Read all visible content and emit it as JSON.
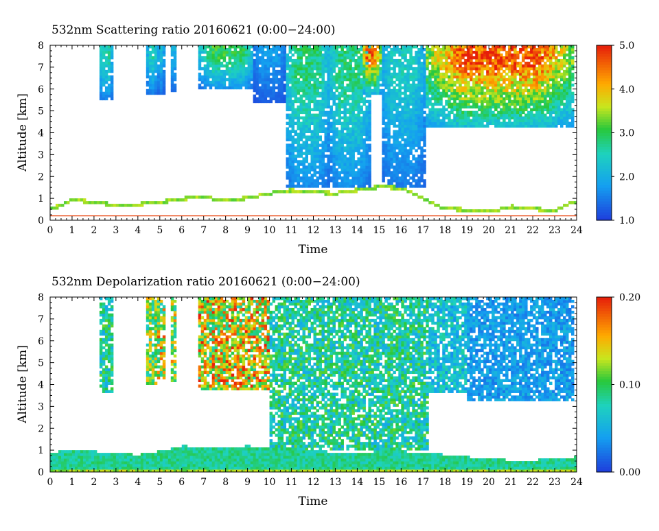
{
  "chart_data": [
    {
      "type": "heatmap",
      "title": "532nm Scattering ratio  20160621 (0:00−24:00)",
      "xlabel": "Time",
      "ylabel": "Altitude [km]",
      "xlim": [
        0,
        24
      ],
      "ylim": [
        0,
        8
      ],
      "x_ticks": [
        "0",
        "1",
        "2",
        "3",
        "4",
        "5",
        "6",
        "7",
        "8",
        "9",
        "10",
        "11",
        "12",
        "13",
        "14",
        "15",
        "16",
        "17",
        "18",
        "19",
        "20",
        "21",
        "22",
        "23",
        "24"
      ],
      "y_ticks": [
        "0",
        "1",
        "2",
        "3",
        "4",
        "5",
        "6",
        "7",
        "8"
      ],
      "colorbar": {
        "min": 1.0,
        "max": 5.0,
        "tick_labels": [
          "1.0",
          "2.0",
          "3.0",
          "4.0",
          "5.0"
        ],
        "tick_values": [
          1.0,
          2.0,
          3.0,
          4.0,
          5.0
        ]
      },
      "features": {
        "boundary_layer_top_km": [
          [
            0,
            0.6
          ],
          [
            0.5,
            0.75
          ],
          [
            1,
            1.0
          ],
          [
            2,
            0.9
          ],
          [
            3,
            0.75
          ],
          [
            4,
            0.8
          ],
          [
            5,
            0.9
          ],
          [
            6,
            1.05
          ],
          [
            7,
            1.15
          ],
          [
            8,
            0.95
          ],
          [
            9,
            1.1
          ],
          [
            10,
            1.3
          ],
          [
            11,
            1.45
          ],
          [
            12,
            1.35
          ],
          [
            13,
            1.3
          ],
          [
            14,
            1.45
          ],
          [
            15,
            1.6
          ],
          [
            16,
            1.55
          ],
          [
            17,
            1.05
          ],
          [
            18,
            0.6
          ],
          [
            19,
            0.55
          ],
          [
            20,
            0.45
          ],
          [
            21,
            0.7
          ],
          [
            22,
            0.6
          ],
          [
            23,
            0.5
          ],
          [
            23.8,
            0.9
          ]
        ],
        "surface_line_km": 0.2,
        "cloud_columns": [
          {
            "x0": 2.2,
            "x1": 2.85,
            "y0": 5.5,
            "y1": 8.0,
            "peak": 2.6
          },
          {
            "x0": 4.4,
            "x1": 4.9,
            "y0": 5.8,
            "y1": 8.0,
            "peak": 2.5
          },
          {
            "x0": 4.9,
            "x1": 5.2,
            "y0": 5.8,
            "y1": 8.0,
            "peak": 2.2
          },
          {
            "x0": 5.5,
            "x1": 5.75,
            "y0": 5.9,
            "y1": 8.0,
            "peak": 2.0
          },
          {
            "x0": 6.8,
            "x1": 9.3,
            "y0": 6.0,
            "y1": 8.0,
            "peak": 3.0
          },
          {
            "x0": 9.3,
            "x1": 10.7,
            "y0": 5.4,
            "y1": 8.0,
            "peak": 1.8
          },
          {
            "x0": 10.7,
            "x1": 12.7,
            "y0": 1.5,
            "y1": 8.0,
            "peak": 2.8
          },
          {
            "x0": 12.7,
            "x1": 14.6,
            "y0": 1.5,
            "y1": 8.0,
            "peak": 2.8
          },
          {
            "x0": 14.2,
            "x1": 15.1,
            "y0": 5.8,
            "y1": 8.0,
            "peak": 4.4
          },
          {
            "x0": 15.1,
            "x1": 17.1,
            "y0": 1.5,
            "y1": 8.0,
            "peak": 2.4
          },
          {
            "x0": 17.1,
            "x1": 23.9,
            "y0": 4.3,
            "y1": 8.0,
            "peak": 4.6
          }
        ]
      }
    },
    {
      "type": "heatmap",
      "title": "532nm Depolarization ratio  20160621 (0:00−24:00)",
      "xlabel": "Time",
      "ylabel": "Altitude [km]",
      "xlim": [
        0,
        24
      ],
      "ylim": [
        0,
        8
      ],
      "x_ticks": [
        "0",
        "1",
        "2",
        "3",
        "4",
        "5",
        "6",
        "7",
        "8",
        "9",
        "10",
        "11",
        "12",
        "13",
        "14",
        "15",
        "16",
        "17",
        "18",
        "19",
        "20",
        "21",
        "22",
        "23",
        "24"
      ],
      "y_ticks": [
        "0",
        "1",
        "2",
        "3",
        "4",
        "5",
        "6",
        "7",
        "8"
      ],
      "colorbar": {
        "min": 0.0,
        "max": 0.2,
        "tick_labels": [
          "0.00",
          "0.10",
          "0.20"
        ],
        "tick_values": [
          0.0,
          0.1,
          0.2
        ]
      },
      "features": {
        "boundary_layer_top_km": [
          [
            0,
            0.9
          ],
          [
            1,
            1.0
          ],
          [
            2,
            0.95
          ],
          [
            2.5,
            0.9
          ],
          [
            3,
            0.85
          ],
          [
            4,
            0.8
          ],
          [
            5,
            0.95
          ],
          [
            6,
            1.2
          ],
          [
            7,
            1.15
          ],
          [
            8,
            1.1
          ],
          [
            9,
            1.2
          ],
          [
            10,
            1.1
          ],
          [
            11,
            1.1
          ],
          [
            12,
            1.0
          ],
          [
            13,
            0.9
          ],
          [
            14,
            0.9
          ],
          [
            15,
            0.95
          ],
          [
            16,
            0.95
          ],
          [
            17,
            0.9
          ],
          [
            18,
            0.8
          ],
          [
            19,
            0.7
          ],
          [
            20,
            0.6
          ],
          [
            21,
            0.55
          ],
          [
            22,
            0.55
          ],
          [
            23,
            0.6
          ],
          [
            24,
            0.7
          ]
        ],
        "cloud_columns": [
          {
            "x0": 2.2,
            "x1": 2.85,
            "y0": 3.6,
            "y1": 8.0,
            "value": 0.08
          },
          {
            "x0": 4.4,
            "x1": 4.85,
            "y0": 4.0,
            "y1": 8.0,
            "value": 0.11
          },
          {
            "x0": 4.9,
            "x1": 5.2,
            "y0": 4.2,
            "y1": 8.0,
            "value": 0.13
          },
          {
            "x0": 5.55,
            "x1": 5.75,
            "y0": 4.1,
            "y1": 8.0,
            "value": 0.12
          },
          {
            "x0": 6.7,
            "x1": 10.0,
            "y0": 3.8,
            "y1": 8.0,
            "value": 0.14
          },
          {
            "x0": 10.0,
            "x1": 17.2,
            "y0": 1.0,
            "y1": 8.0,
            "value": 0.08
          },
          {
            "x0": 17.2,
            "x1": 19.0,
            "y0": 3.6,
            "y1": 8.0,
            "value": 0.06
          },
          {
            "x0": 19.0,
            "x1": 23.9,
            "y0": 3.3,
            "y1": 8.0,
            "value": 0.04
          }
        ]
      }
    }
  ]
}
